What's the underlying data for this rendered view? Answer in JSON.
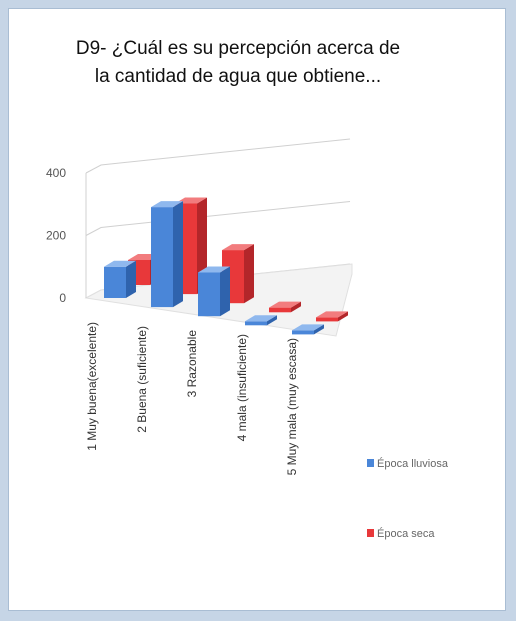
{
  "chart_data": {
    "type": "bar",
    "title_lines": [
      "D9- ¿Cuál es su percepción acerca de",
      "la cantidad de agua que obtiene..."
    ],
    "categories": [
      "1  Muy buena(excelente)",
      "2  Buena (suficiente)",
      "3  Razonable",
      "4  mala (insuficiente)",
      "5  Muy mala  (muy escasa)"
    ],
    "series": [
      {
        "name": "Época lluviosa",
        "values": [
          100,
          320,
          140,
          10,
          5
        ]
      },
      {
        "name": "Época seca",
        "values": [
          80,
          290,
          170,
          15,
          10
        ]
      }
    ],
    "yticks": [
      0,
      200,
      400
    ],
    "ylim": [
      0,
      400
    ],
    "legend_position": "right",
    "colors": {
      "series": [
        "#4a86d8",
        "#e8383a"
      ],
      "series_side": [
        "#2f63ad",
        "#b3262a"
      ],
      "series_top": [
        "#8fb8ee",
        "#f27c7e"
      ],
      "grid": "#d0d0d0",
      "floor": "#f3f3f3"
    }
  }
}
